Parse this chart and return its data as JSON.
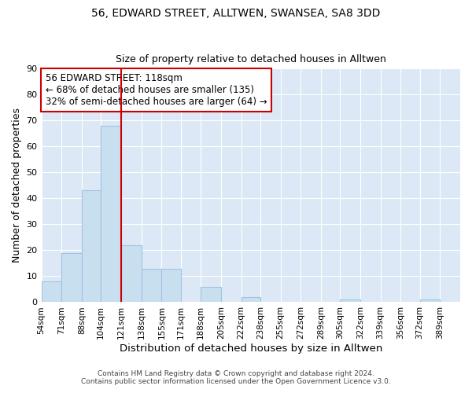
{
  "title1": "56, EDWARD STREET, ALLTWEN, SWANSEA, SA8 3DD",
  "title2": "Size of property relative to detached houses in Alltwen",
  "xlabel": "Distribution of detached houses by size in Alltwen",
  "ylabel": "Number of detached properties",
  "bin_labels": [
    "54sqm",
    "71sqm",
    "88sqm",
    "104sqm",
    "121sqm",
    "138sqm",
    "155sqm",
    "171sqm",
    "188sqm",
    "205sqm",
    "222sqm",
    "238sqm",
    "255sqm",
    "272sqm",
    "289sqm",
    "305sqm",
    "322sqm",
    "339sqm",
    "356sqm",
    "372sqm",
    "389sqm"
  ],
  "bin_edges": [
    54,
    71,
    88,
    104,
    121,
    138,
    155,
    171,
    188,
    205,
    222,
    238,
    255,
    272,
    289,
    305,
    322,
    339,
    356,
    372,
    389,
    406
  ],
  "counts": [
    8,
    19,
    43,
    68,
    22,
    13,
    13,
    0,
    6,
    0,
    2,
    0,
    0,
    0,
    0,
    1,
    0,
    0,
    0,
    1,
    0
  ],
  "bar_color": "#c8dff0",
  "bar_edge_color": "#a0c4e0",
  "vline_color": "#cc0000",
  "vline_x": 121,
  "annotation_text1": "56 EDWARD STREET: 118sqm",
  "annotation_text2": "← 68% of detached houses are smaller (135)",
  "annotation_text3": "32% of semi-detached houses are larger (64) →",
  "box_edge_color": "#cc0000",
  "ylim": [
    0,
    90
  ],
  "yticks": [
    0,
    10,
    20,
    30,
    40,
    50,
    60,
    70,
    80,
    90
  ],
  "footnote1": "Contains HM Land Registry data © Crown copyright and database right 2024.",
  "footnote2": "Contains public sector information licensed under the Open Government Licence v3.0.",
  "fig_background": "#ffffff",
  "plot_background": "#dce8f5"
}
